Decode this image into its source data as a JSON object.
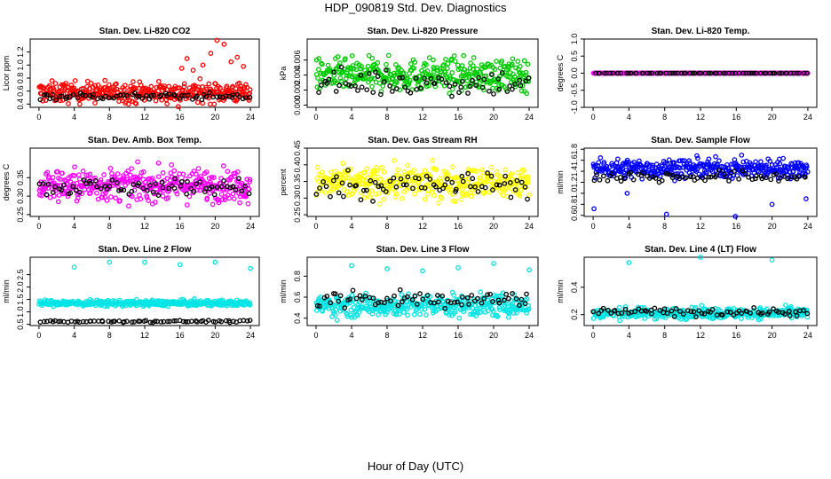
{
  "figure": {
    "title": "HDP_090819  Std. Dev. Diagnostics",
    "xlabel": "Hour of Day (UTC)"
  },
  "chart_data": [
    {
      "type": "scatter",
      "title": "Stan. Dev. Li-820 CO2",
      "ylabel": "Licor ppm",
      "xlim": [
        -1,
        25
      ],
      "ylim": [
        0.35,
        1.4
      ],
      "xticks": [
        0,
        4,
        8,
        12,
        16,
        20,
        24
      ],
      "yticks": [
        0.4,
        0.6,
        0.8,
        1.0,
        1.2
      ],
      "series": [
        {
          "color": "#ff0000",
          "sample": {
            "min": 0.4,
            "max": 1.0,
            "center": 0.58
          },
          "outliers": [
            [
              16.2,
              0.95
            ],
            [
              16.8,
              1.1
            ],
            [
              17.5,
              0.92
            ],
            [
              18.6,
              1.0
            ],
            [
              19.5,
              1.18
            ],
            [
              20.2,
              1.38
            ],
            [
              21.0,
              1.32
            ],
            [
              21.8,
              1.05
            ],
            [
              22.5,
              1.12
            ],
            [
              23.2,
              0.98
            ],
            [
              15.8,
              0.36
            ]
          ]
        },
        {
          "color": "#000000",
          "sample": {
            "min": 0.42,
            "max": 0.62,
            "center": 0.52
          }
        }
      ]
    },
    {
      "type": "scatter",
      "title": "Stan. Dev. Li-820 Pressure",
      "ylabel": "kPa",
      "xlim": [
        -1,
        25
      ],
      "ylim": [
        -0.0003,
        0.0088
      ],
      "xticks": [
        0,
        4,
        8,
        12,
        16,
        20,
        24
      ],
      "yticks": [
        0.0,
        0.002,
        0.004,
        0.006
      ],
      "series": [
        {
          "color": "#00cc00",
          "sample": {
            "min": 0.0,
            "max": 0.008,
            "center": 0.004
          }
        },
        {
          "color": "#000000",
          "sample": {
            "min": 0.0,
            "max": 0.007,
            "center": 0.003
          }
        }
      ]
    },
    {
      "type": "scatter",
      "title": "Stan. Dev. Li-820 Temp.",
      "ylabel": "degrees C",
      "xlim": [
        -1,
        25
      ],
      "ylim": [
        -1.0,
        1.0
      ],
      "xticks": [
        0,
        4,
        8,
        12,
        16,
        20,
        24
      ],
      "yticks": [
        -1.0,
        -0.5,
        0.0,
        0.5,
        1.0
      ],
      "series": [
        {
          "color": "#ff00ff",
          "constant": 0.0
        },
        {
          "color": "#000000",
          "constant": 0.0
        }
      ]
    },
    {
      "type": "scatter",
      "title": "Stan. Dev. Amb. Box Temp.",
      "ylabel": "degrees C",
      "xlim": [
        -1,
        25
      ],
      "ylim": [
        0.245,
        0.43
      ],
      "xticks": [
        0,
        4,
        8,
        12,
        16,
        20,
        24
      ],
      "yticks": [
        0.25,
        0.3,
        0.35
      ],
      "series": [
        {
          "color": "#ff00ff",
          "sample": {
            "min": 0.255,
            "max": 0.42,
            "center": 0.33
          }
        },
        {
          "color": "#000000",
          "sample": {
            "min": 0.28,
            "max": 0.37,
            "center": 0.325
          }
        }
      ]
    },
    {
      "type": "scatter",
      "title": "Stan. Dev. Gas Stream RH",
      "ylabel": "percent",
      "xlim": [
        -1,
        25
      ],
      "ylim": [
        0.245,
        0.45
      ],
      "xticks": [
        0,
        4,
        8,
        12,
        16,
        20,
        24
      ],
      "yticks": [
        0.25,
        0.3,
        0.35,
        0.4,
        0.45
      ],
      "series": [
        {
          "color": "#ffff00",
          "sample": {
            "min": 0.255,
            "max": 0.44,
            "center": 0.345
          }
        },
        {
          "color": "#000000",
          "sample": {
            "min": 0.27,
            "max": 0.42,
            "center": 0.34
          }
        }
      ]
    },
    {
      "type": "scatter",
      "title": "Stan. Dev. Sample Flow",
      "ylabel": "ml/min",
      "xlim": [
        -1,
        25
      ],
      "ylim": [
        0.58,
        1.82
      ],
      "xticks": [
        0,
        4,
        8,
        12,
        16,
        20,
        24
      ],
      "yticks": [
        0.6,
        0.8,
        1.0,
        1.2,
        1.4,
        1.6,
        1.8
      ],
      "series": [
        {
          "color": "#0000ff",
          "sample": {
            "min": 1.1,
            "max": 1.75,
            "center": 1.45
          },
          "outliers": [
            [
              0.1,
              0.72
            ],
            [
              3.8,
              1.0
            ],
            [
              8.2,
              0.62
            ],
            [
              15.9,
              0.58
            ],
            [
              20.0,
              0.8
            ],
            [
              23.8,
              0.9
            ]
          ]
        },
        {
          "color": "#000000",
          "sample": {
            "min": 1.1,
            "max": 1.5,
            "center": 1.3
          }
        }
      ]
    },
    {
      "type": "scatter",
      "title": "Stan. Dev. Line 2 Flow",
      "ylabel": "ml/min",
      "xlim": [
        -1,
        25
      ],
      "ylim": [
        0.45,
        3.2
      ],
      "xticks": [
        0,
        4,
        8,
        12,
        16,
        20,
        24
      ],
      "yticks": [
        0.5,
        1.0,
        1.5,
        2.0,
        2.5
      ],
      "series": [
        {
          "color": "#00e5e5",
          "sample": {
            "min": 1.15,
            "max": 1.6,
            "center": 1.35
          },
          "outliers": [
            [
              4.0,
              2.8
            ],
            [
              8.0,
              3.0
            ],
            [
              12.0,
              3.0
            ],
            [
              16.0,
              2.9
            ],
            [
              20.0,
              3.0
            ],
            [
              24.0,
              2.75
            ]
          ]
        },
        {
          "color": "#000000",
          "sample": {
            "min": 0.55,
            "max": 0.7,
            "center": 0.62
          }
        }
      ]
    },
    {
      "type": "scatter",
      "title": "Stan. Dev. Line 3 Flow",
      "ylabel": "ml/min",
      "xlim": [
        -1,
        25
      ],
      "ylim": [
        0.33,
        0.98
      ],
      "xticks": [
        0,
        4,
        8,
        12,
        16,
        20,
        24
      ],
      "yticks": [
        0.4,
        0.6,
        0.8
      ],
      "series": [
        {
          "color": "#00e5e5",
          "sample": {
            "min": 0.35,
            "max": 0.75,
            "center": 0.52
          },
          "outliers": [
            [
              4.0,
              0.9
            ],
            [
              8.0,
              0.87
            ],
            [
              12.0,
              0.85
            ],
            [
              16.0,
              0.88
            ],
            [
              20.0,
              0.92
            ],
            [
              24.0,
              0.86
            ]
          ]
        },
        {
          "color": "#000000",
          "sample": {
            "min": 0.42,
            "max": 0.75,
            "center": 0.58
          }
        }
      ]
    },
    {
      "type": "scatter",
      "title": "Stan. Dev. Line 4 (LT) Flow",
      "ylabel": "ml/min",
      "xlim": [
        -1,
        25
      ],
      "ylim": [
        0.12,
        0.62
      ],
      "xticks": [
        0,
        4,
        8,
        12,
        16,
        20,
        24
      ],
      "yticks": [
        0.2,
        0.4
      ],
      "series": [
        {
          "color": "#00e5e5",
          "sample": {
            "min": 0.14,
            "max": 0.29,
            "center": 0.21
          },
          "outliers": [
            [
              4.0,
              0.58
            ],
            [
              12.0,
              0.62
            ],
            [
              20.0,
              0.6
            ]
          ]
        },
        {
          "color": "#000000",
          "sample": {
            "min": 0.17,
            "max": 0.28,
            "center": 0.22
          }
        }
      ]
    }
  ]
}
